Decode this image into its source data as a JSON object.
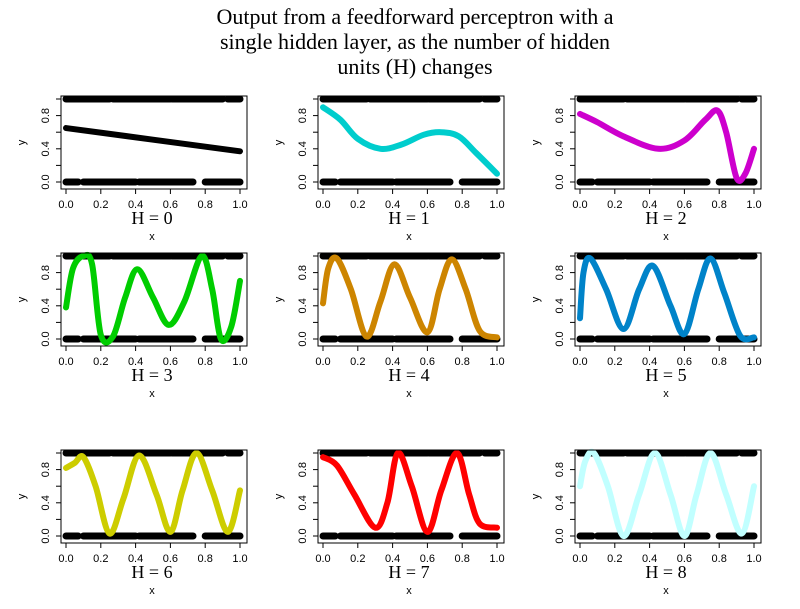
{
  "title_lines": [
    "Output from a feedforward perceptron with a",
    "single hidden layer, as the number of hidden",
    "units (H) changes"
  ],
  "observations": {
    "description_y1_ranges": [
      [
        0,
        0.25
      ],
      [
        0.27,
        0.6
      ],
      [
        0.61,
        0.9
      ],
      [
        0.93,
        1.0
      ]
    ],
    "description_y0_ranges": [
      [
        0,
        0.07
      ],
      [
        0.1,
        0.4
      ],
      [
        0.42,
        0.73
      ],
      [
        0.8,
        1.0
      ]
    ]
  },
  "chart_data": [
    {
      "type": "line",
      "title": "H = 0",
      "h_label": "H",
      "h_value": "= 0",
      "xlabel": "x",
      "ylabel": "y",
      "xlim": [
        0,
        1
      ],
      "ylim": [
        0,
        1
      ],
      "xticks": [
        "0.0",
        "0.2",
        "0.4",
        "0.6",
        "0.8",
        "1.0"
      ],
      "yticks": [
        "0.0",
        "0.4",
        "0.8"
      ],
      "color": "#000000",
      "x": [
        0,
        1
      ],
      "y": [
        0.65,
        0.37
      ]
    },
    {
      "type": "line",
      "title": "H = 1",
      "h_label": "H",
      "h_value": "= 1",
      "xlabel": "x",
      "ylabel": "y",
      "xlim": [
        0,
        1
      ],
      "ylim": [
        0,
        1
      ],
      "xticks": [
        "0.0",
        "0.2",
        "0.4",
        "0.6",
        "0.8",
        "1.0"
      ],
      "yticks": [
        "0.0",
        "0.4",
        "0.8"
      ],
      "color": "#00CDCD",
      "x": [
        0,
        0.1,
        0.2,
        0.33,
        0.45,
        0.58,
        0.68,
        0.78,
        0.88,
        1.0
      ],
      "y": [
        0.9,
        0.75,
        0.52,
        0.4,
        0.45,
        0.57,
        0.6,
        0.55,
        0.35,
        0.1
      ]
    },
    {
      "type": "line",
      "title": "H = 2",
      "h_label": "H",
      "h_value": "= 2",
      "xlabel": "x",
      "ylabel": "y",
      "xlim": [
        0,
        1
      ],
      "ylim": [
        0,
        1
      ],
      "xticks": [
        "0.0",
        "0.2",
        "0.4",
        "0.6",
        "0.8",
        "1.0"
      ],
      "yticks": [
        "0.0",
        "0.4",
        "0.8"
      ],
      "color": "#CD00CD",
      "x": [
        0,
        0.1,
        0.25,
        0.45,
        0.6,
        0.72,
        0.79,
        0.84,
        0.9,
        0.95,
        1.0
      ],
      "y": [
        0.82,
        0.72,
        0.55,
        0.4,
        0.5,
        0.75,
        0.86,
        0.6,
        0.05,
        0.1,
        0.4
      ]
    },
    {
      "type": "line",
      "title": "H = 3",
      "h_label": "H",
      "h_value": "= 3",
      "xlabel": "x",
      "ylabel": "y",
      "xlim": [
        0,
        1
      ],
      "ylim": [
        0,
        1
      ],
      "xticks": [
        "0.0",
        "0.2",
        "0.4",
        "0.6",
        "0.8",
        "1.0"
      ],
      "yticks": [
        "0.0",
        "0.4",
        "0.8"
      ],
      "color": "#00CD00",
      "x": [
        0,
        0.04,
        0.1,
        0.15,
        0.2,
        0.27,
        0.34,
        0.41,
        0.5,
        0.59,
        0.68,
        0.78,
        0.84,
        0.89,
        0.95,
        1.0
      ],
      "y": [
        0.38,
        0.85,
        1.0,
        0.9,
        0.05,
        0.03,
        0.5,
        0.84,
        0.5,
        0.17,
        0.45,
        1.0,
        0.6,
        0.0,
        0.15,
        0.7
      ]
    },
    {
      "type": "line",
      "title": "H = 4",
      "h_label": "H",
      "h_value": "= 4",
      "xlabel": "x",
      "ylabel": "y",
      "xlim": [
        0,
        1
      ],
      "ylim": [
        0,
        1
      ],
      "xticks": [
        "0.0",
        "0.2",
        "0.4",
        "0.6",
        "0.8",
        "1.0"
      ],
      "yticks": [
        "0.0",
        "0.4",
        "0.8"
      ],
      "color": "#CD8500",
      "x": [
        0,
        0.03,
        0.08,
        0.16,
        0.25,
        0.33,
        0.41,
        0.5,
        0.6,
        0.67,
        0.74,
        0.82,
        0.9,
        1.0
      ],
      "y": [
        0.43,
        0.85,
        0.97,
        0.6,
        0.03,
        0.45,
        0.9,
        0.5,
        0.08,
        0.6,
        0.96,
        0.6,
        0.1,
        0.02
      ]
    },
    {
      "type": "line",
      "title": "H = 5",
      "h_label": "H",
      "h_value": "= 5",
      "xlabel": "x",
      "ylabel": "y",
      "xlim": [
        0,
        1
      ],
      "ylim": [
        0,
        1
      ],
      "xticks": [
        "0.0",
        "0.2",
        "0.4",
        "0.6",
        "0.8",
        "1.0"
      ],
      "yticks": [
        "0.0",
        "0.4",
        "0.8"
      ],
      "color": "#0083C9",
      "x": [
        0,
        0.02,
        0.06,
        0.15,
        0.25,
        0.34,
        0.42,
        0.52,
        0.6,
        0.68,
        0.75,
        0.83,
        0.92,
        1.0
      ],
      "y": [
        0.25,
        0.8,
        0.97,
        0.6,
        0.12,
        0.6,
        0.88,
        0.4,
        0.06,
        0.6,
        0.97,
        0.55,
        0.04,
        0.02
      ]
    },
    {
      "type": "line",
      "title": "H = 6",
      "h_label": "H",
      "h_value": "= 6",
      "xlabel": "x",
      "ylabel": "y",
      "xlim": [
        0,
        1
      ],
      "ylim": [
        0,
        1
      ],
      "xticks": [
        "0.0",
        "0.2",
        "0.4",
        "0.6",
        "0.8",
        "1.0"
      ],
      "yticks": [
        "0.0",
        "0.4",
        "0.8"
      ],
      "color": "#CDCD00",
      "x": [
        0,
        0.05,
        0.1,
        0.17,
        0.25,
        0.33,
        0.42,
        0.52,
        0.6,
        0.67,
        0.75,
        0.84,
        0.93,
        1.0
      ],
      "y": [
        0.82,
        0.88,
        0.95,
        0.6,
        0.03,
        0.45,
        0.97,
        0.5,
        0.05,
        0.55,
        1.0,
        0.55,
        0.05,
        0.55
      ]
    },
    {
      "type": "line",
      "title": "H = 7",
      "h_label": "H",
      "h_value": "= 7",
      "xlabel": "x",
      "ylabel": "y",
      "xlim": [
        0,
        1
      ],
      "ylim": [
        0,
        1
      ],
      "xticks": [
        "0.0",
        "0.2",
        "0.4",
        "0.6",
        "0.8",
        "1.0"
      ],
      "yticks": [
        "0.0",
        "0.4",
        "0.8"
      ],
      "color": "#FF0000",
      "x": [
        0,
        0.08,
        0.18,
        0.3,
        0.37,
        0.43,
        0.51,
        0.6,
        0.68,
        0.77,
        0.84,
        0.9,
        1.0
      ],
      "y": [
        0.95,
        0.85,
        0.5,
        0.1,
        0.4,
        1.0,
        0.6,
        0.05,
        0.55,
        1.0,
        0.5,
        0.15,
        0.1
      ]
    },
    {
      "type": "line",
      "title": "H = 8",
      "h_label": "H",
      "h_value": "= 8",
      "xlabel": "x",
      "ylabel": "y",
      "xlim": [
        0,
        1
      ],
      "ylim": [
        0,
        1
      ],
      "xticks": [
        "0.0",
        "0.2",
        "0.4",
        "0.6",
        "0.8",
        "1.0"
      ],
      "yticks": [
        "0.0",
        "0.4",
        "0.8"
      ],
      "color": "#C1FFFF",
      "x": [
        0,
        0.03,
        0.08,
        0.16,
        0.25,
        0.34,
        0.43,
        0.52,
        0.6,
        0.67,
        0.75,
        0.84,
        0.93,
        1.0
      ],
      "y": [
        0.6,
        0.9,
        1.0,
        0.6,
        0.0,
        0.5,
        1.0,
        0.5,
        0.0,
        0.5,
        1.0,
        0.5,
        0.03,
        0.6
      ]
    }
  ]
}
